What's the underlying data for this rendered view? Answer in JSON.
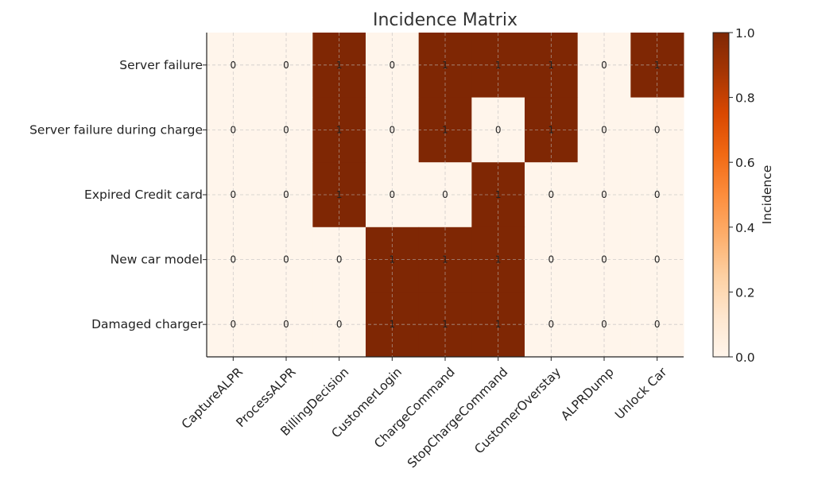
{
  "chart_data": {
    "type": "heatmap",
    "title": "Incidence Matrix",
    "rows": [
      "Server failure",
      "Server failure during charge",
      "Expired Credit card",
      "New car model",
      "Damaged charger"
    ],
    "columns": [
      "CaptureALPR",
      "ProcessALPR",
      "BillingDecision",
      "CustomerLogin",
      "ChargeCommand",
      "StopChargeCommand",
      "CustomerOverstay",
      "ALPRDump",
      "Unlock Car"
    ],
    "values": [
      [
        0,
        0,
        1,
        0,
        1,
        1,
        1,
        0,
        1
      ],
      [
        0,
        0,
        1,
        0,
        1,
        0,
        1,
        0,
        0
      ],
      [
        0,
        0,
        1,
        0,
        0,
        1,
        0,
        0,
        0
      ],
      [
        0,
        0,
        0,
        1,
        1,
        1,
        0,
        0,
        0
      ],
      [
        0,
        0,
        0,
        1,
        1,
        1,
        0,
        0,
        0
      ]
    ],
    "colorbar": {
      "label": "Incidence",
      "min": 0.0,
      "max": 1.0,
      "ticks": [
        "0.0",
        "0.2",
        "0.4",
        "0.6",
        "0.8",
        "1.0"
      ],
      "colormap": "Oranges",
      "min_color": "#fff5eb",
      "max_color": "#7f2704"
    },
    "grid": true
  }
}
